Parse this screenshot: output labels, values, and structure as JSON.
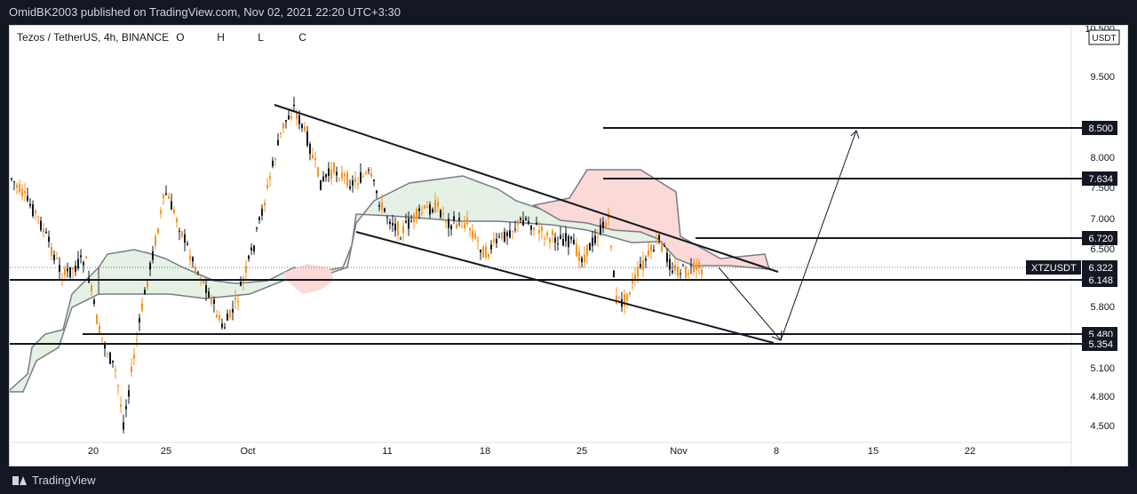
{
  "header": {
    "publisher_line": "OmidBK2003 published on TradingView.com, Nov 02, 2021 22:20 UTC+3:30"
  },
  "legend": {
    "symbol": "Tezos / TetherUS, 4h, BINANCE",
    "o": "O",
    "h": "H",
    "l": "L",
    "c": "C"
  },
  "price_axis": {
    "unit": "USDT",
    "ticks": [
      "10.500",
      "9.500",
      "8.000",
      "7.500",
      "7.000",
      "6.500",
      "5.800",
      "5.100",
      "4.800",
      "4.500"
    ]
  },
  "price_labels": [
    {
      "text": "8.500",
      "type": "level"
    },
    {
      "text": "7.634",
      "type": "level"
    },
    {
      "text": "6.720",
      "type": "level"
    },
    {
      "text": "6.322",
      "type": "current",
      "symbol": "XTZUSDT"
    },
    {
      "text": "6.148",
      "type": "level"
    },
    {
      "text": "5.480",
      "type": "level"
    },
    {
      "text": "5.354",
      "type": "level"
    }
  ],
  "time_axis": [
    "20",
    "25",
    "Oct",
    "11",
    "18",
    "25",
    "Nov",
    "8",
    "15",
    "22"
  ],
  "footer": {
    "brand": "TradingView"
  },
  "colors": {
    "bull": "#f7931a",
    "bear": "#131722",
    "cloud_bull": "#e4f1e4",
    "cloud_bear": "#fbd9d6",
    "cloud_edge": "#787b86"
  }
}
